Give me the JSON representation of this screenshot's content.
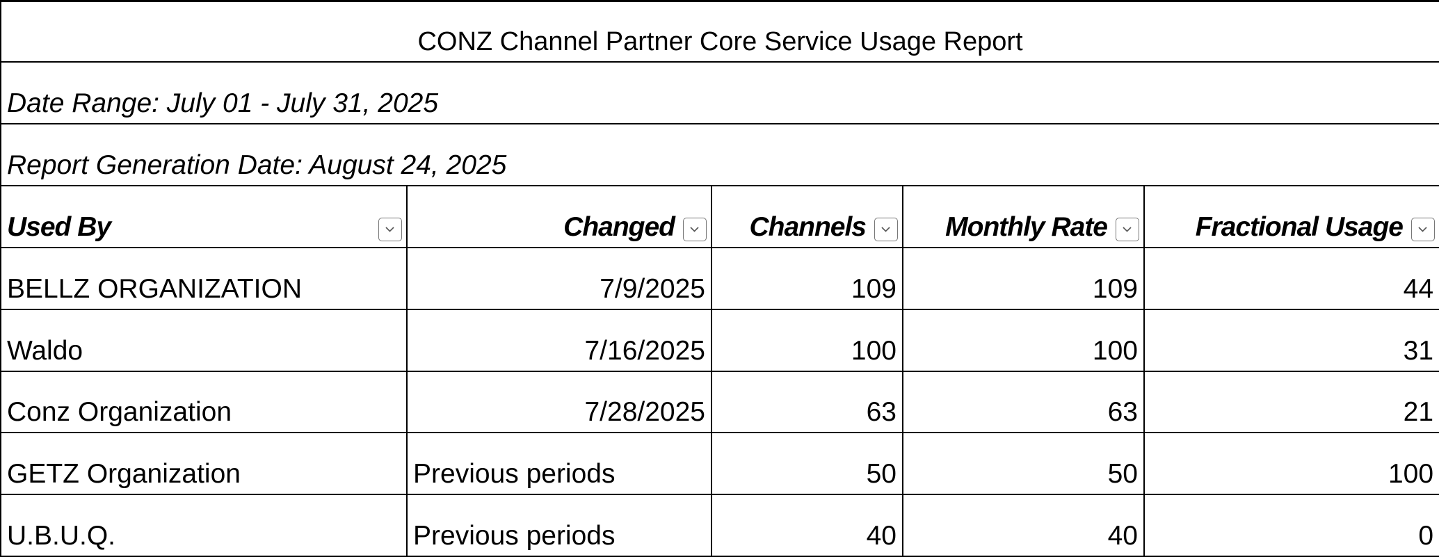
{
  "header": {
    "title": "CONZ Channel Partner Core Service Usage Report",
    "date_range": "Date Range: July 01 - July 31, 2025",
    "generation_date": "Report Generation Date: August 24, 2025"
  },
  "table": {
    "columns": [
      "Used By",
      "Changed",
      "Channels",
      "Monthly Rate",
      "Fractional Usage"
    ],
    "rows": [
      [
        "BELLZ ORGANIZATION",
        "7/9/2025",
        109,
        109,
        44
      ],
      [
        "Waldo",
        "7/16/2025",
        100,
        100,
        31
      ],
      [
        "Conz Organization",
        "7/28/2025",
        63,
        63,
        21
      ],
      [
        "GETZ Organization",
        "Previous periods",
        50,
        50,
        100
      ],
      [
        "U.B.U.Q.",
        "Previous periods",
        40,
        40,
        0
      ]
    ]
  }
}
